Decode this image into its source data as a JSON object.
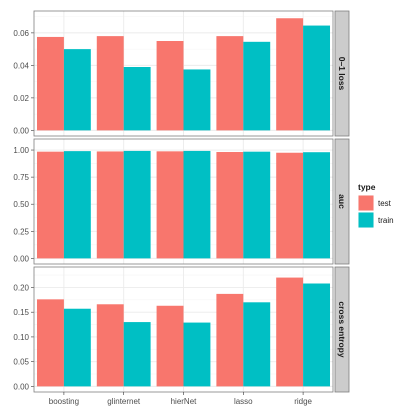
{
  "chart_data": {
    "type": "bar",
    "categories": [
      "boosting",
      "glinternet",
      "hierNet",
      "lasso",
      "ridge"
    ],
    "legend": {
      "title": "type",
      "placement": "right",
      "entries": [
        {
          "label": "test",
          "color": "#F8766D"
        },
        {
          "label": "train",
          "color": "#00BFC4"
        }
      ]
    },
    "facets": [
      {
        "label": "0–1 loss",
        "ylim": [
          0,
          0.07
        ],
        "ticks": [
          "0.00",
          "0.02",
          "0.04",
          "0.06"
        ],
        "tick_values": [
          0,
          0.02,
          0.04,
          0.06
        ],
        "series": [
          {
            "name": "test",
            "values": [
              0.0575,
              0.058,
              0.055,
              0.058,
              0.069
            ]
          },
          {
            "name": "train",
            "values": [
              0.05,
              0.039,
              0.0375,
              0.0545,
              0.0645
            ]
          }
        ]
      },
      {
        "label": "auc",
        "ylim": [
          0,
          1.05
        ],
        "ticks": [
          "0.00",
          "0.25",
          "0.50",
          "0.75",
          "1.00"
        ],
        "tick_values": [
          0,
          0.25,
          0.5,
          0.75,
          1.0
        ],
        "series": [
          {
            "name": "test",
            "values": [
              0.985,
              0.987,
              0.988,
              0.982,
              0.975
            ]
          },
          {
            "name": "train",
            "values": [
              0.99,
              0.992,
              0.992,
              0.985,
              0.98
            ]
          }
        ]
      },
      {
        "label": "cross entropy",
        "ylim": [
          0,
          0.23
        ],
        "ticks": [
          "0.00",
          "0.05",
          "0.10",
          "0.15",
          "0.20"
        ],
        "tick_values": [
          0,
          0.05,
          0.1,
          0.15,
          0.2
        ],
        "series": [
          {
            "name": "test",
            "values": [
              0.176,
              0.166,
              0.163,
              0.187,
              0.22
            ]
          },
          {
            "name": "train",
            "values": [
              0.157,
              0.13,
              0.129,
              0.17,
              0.208
            ]
          }
        ]
      }
    ],
    "grid": true,
    "colors": {
      "panel_background": "#ffffff",
      "grid_major": "#ebebeb",
      "grid_minor": "#f5f5f5",
      "panel_border": "#7f7f7f",
      "strip_background": "#cccccc"
    }
  }
}
